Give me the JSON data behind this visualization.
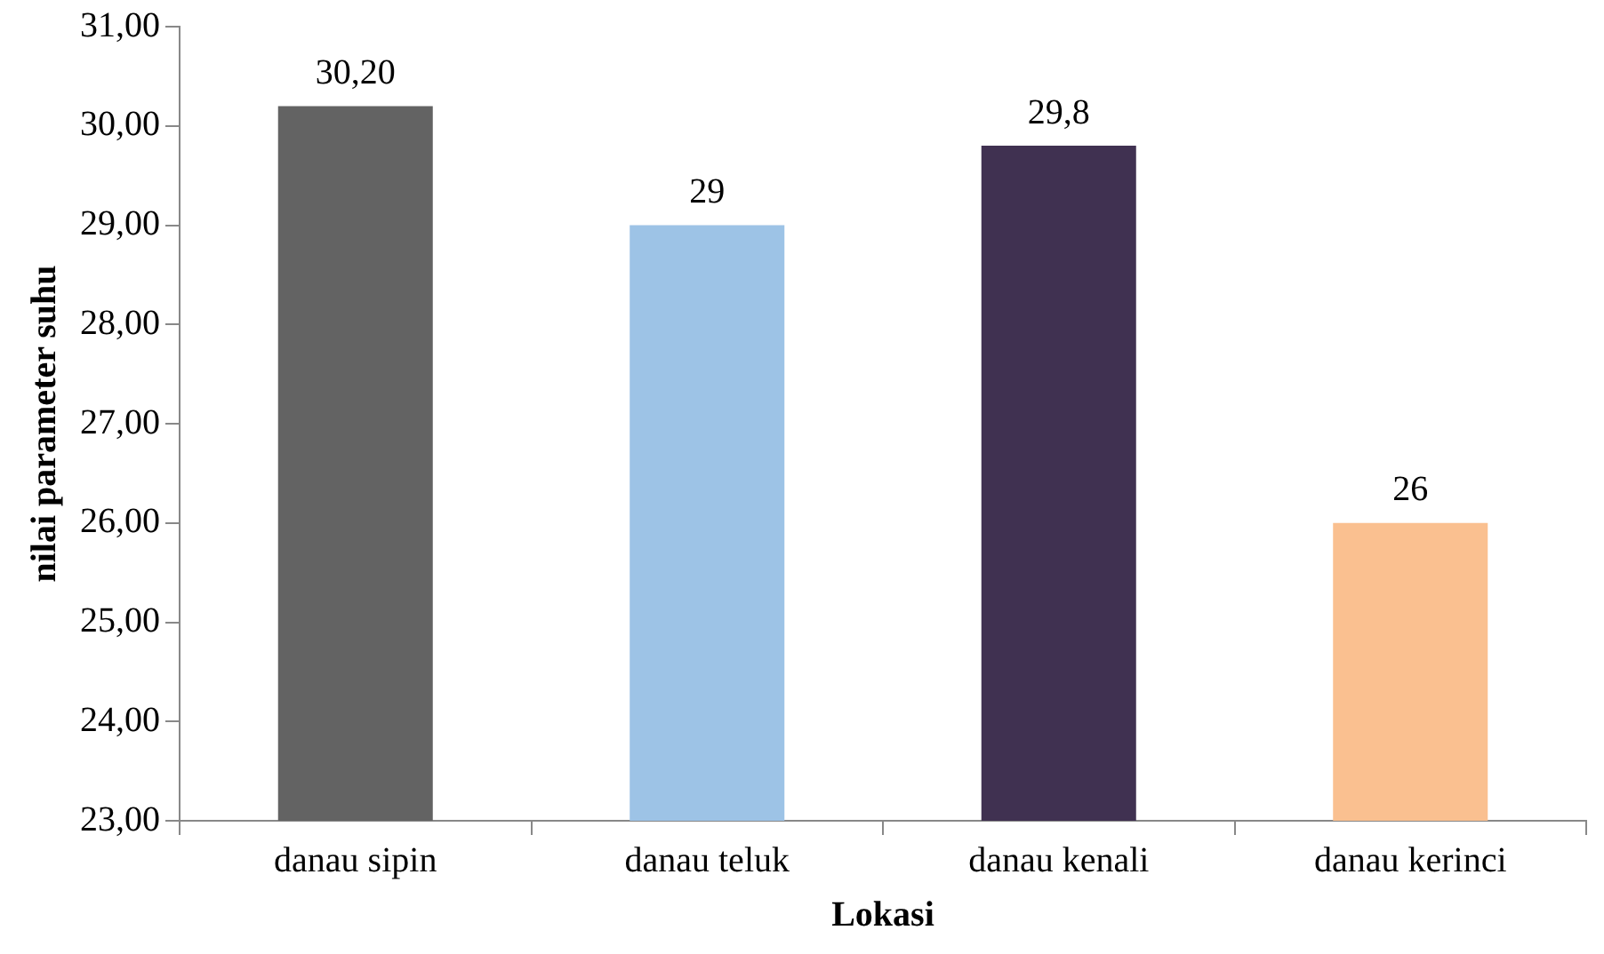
{
  "chart_data": {
    "type": "bar",
    "xlabel": "Lokasi",
    "ylabel": "nilai parameter suhu",
    "categories": [
      "danau sipin",
      "danau teluk",
      "danau kenali",
      "danau kerinci"
    ],
    "values": [
      30.2,
      29,
      29.8,
      26
    ],
    "colors": [
      "#636363",
      "#9dc3e6",
      "#403151",
      "#fac090"
    ],
    "value_labels": [
      "30,20",
      "29",
      "29,8",
      "26"
    ],
    "ylim": [
      23,
      31
    ],
    "yticks": [
      {
        "value": 23,
        "label": "23,00"
      },
      {
        "value": 24,
        "label": "24,00"
      },
      {
        "value": 25,
        "label": "25,00"
      },
      {
        "value": 26,
        "label": "26,00"
      },
      {
        "value": 27,
        "label": "27,00"
      },
      {
        "value": 28,
        "label": "28,00"
      },
      {
        "value": 29,
        "label": "29,00"
      },
      {
        "value": 30,
        "label": "30,00"
      },
      {
        "value": 31,
        "label": "31,00"
      }
    ],
    "grid": false,
    "legend": false
  }
}
